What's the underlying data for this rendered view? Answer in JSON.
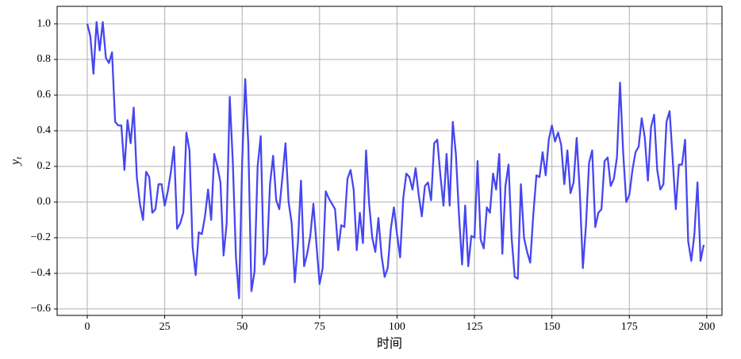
{
  "chart_data": {
    "type": "line",
    "xlabel": "时间",
    "ylabel": {
      "base": "y",
      "sub": "t"
    },
    "xlim": [
      -9.73,
      204.9
    ],
    "ylim": [
      -0.636,
      1.098
    ],
    "xticks": [
      0,
      25,
      50,
      75,
      100,
      125,
      150,
      175,
      200
    ],
    "yticks": [
      {
        "value": -0.6,
        "label": "−0.6"
      },
      {
        "value": -0.4,
        "label": "−0.4"
      },
      {
        "value": -0.2,
        "label": "−0.2"
      },
      {
        "value": 0,
        "label": "0.0"
      },
      {
        "value": 0.2,
        "label": "0.2"
      },
      {
        "value": 0.4,
        "label": "0.4"
      },
      {
        "value": 0.6,
        "label": "0.6"
      },
      {
        "value": 0.8,
        "label": "0.8"
      },
      {
        "value": 1.0,
        "label": "1.0"
      }
    ],
    "grid": true,
    "series": [
      {
        "color": "#4646f0",
        "x": [
          0,
          1,
          2,
          3,
          4,
          5,
          6,
          7,
          8,
          9,
          10,
          11,
          12,
          13,
          14,
          15,
          16,
          17,
          18,
          19,
          20,
          21,
          22,
          23,
          24,
          25,
          26,
          27,
          28,
          29,
          30,
          31,
          32,
          33,
          34,
          35,
          36,
          37,
          38,
          39,
          40,
          41,
          42,
          43,
          44,
          45,
          46,
          47,
          48,
          49,
          50,
          51,
          52,
          53,
          54,
          55,
          56,
          57,
          58,
          59,
          60,
          61,
          62,
          63,
          64,
          65,
          66,
          67,
          68,
          69,
          70,
          71,
          72,
          73,
          74,
          75,
          76,
          77,
          78,
          79,
          80,
          81,
          82,
          83,
          84,
          85,
          86,
          87,
          88,
          89,
          90,
          91,
          92,
          93,
          94,
          95,
          96,
          97,
          98,
          99,
          100,
          101,
          102,
          103,
          104,
          105,
          106,
          107,
          108,
          109,
          110,
          111,
          112,
          113,
          114,
          115,
          116,
          117,
          118,
          119,
          120,
          121,
          122,
          123,
          124,
          125,
          126,
          127,
          128,
          129,
          130,
          131,
          132,
          133,
          134,
          135,
          136,
          137,
          138,
          139,
          140,
          141,
          142,
          143,
          144,
          145,
          146,
          147,
          148,
          149,
          150,
          151,
          152,
          153,
          154,
          155,
          156,
          157,
          158,
          159,
          160,
          161,
          162,
          163,
          164,
          165,
          166,
          167,
          168,
          169,
          170,
          171,
          172,
          173,
          174,
          175,
          176,
          177,
          178,
          179,
          180,
          181,
          182,
          183,
          184,
          185,
          186,
          187,
          188,
          189,
          190,
          191,
          192,
          193,
          194,
          195,
          196,
          197,
          198,
          199
        ],
        "values": [
          1.0,
          0.93,
          0.72,
          1.01,
          0.85,
          1.01,
          0.81,
          0.78,
          0.84,
          0.45,
          0.43,
          0.43,
          0.18,
          0.46,
          0.33,
          0.53,
          0.14,
          -0.01,
          -0.1,
          0.17,
          0.14,
          -0.06,
          -0.04,
          0.1,
          0.1,
          -0.02,
          0.06,
          0.17,
          0.31,
          -0.15,
          -0.12,
          -0.06,
          0.39,
          0.29,
          -0.25,
          -0.41,
          -0.17,
          -0.18,
          -0.08,
          0.07,
          -0.1,
          0.27,
          0.2,
          0.11,
          -0.3,
          -0.12,
          0.59,
          0.22,
          -0.31,
          -0.54,
          0.22,
          0.69,
          0.32,
          -0.5,
          -0.39,
          0.2,
          0.37,
          -0.35,
          -0.29,
          0.1,
          0.26,
          0.01,
          -0.04,
          0.14,
          0.33,
          0.0,
          -0.12,
          -0.45,
          -0.23,
          0.12,
          -0.36,
          -0.29,
          -0.19,
          -0.01,
          -0.24,
          -0.46,
          -0.37,
          0.06,
          0.02,
          -0.01,
          -0.04,
          -0.27,
          -0.13,
          -0.14,
          0.13,
          0.18,
          0.07,
          -0.27,
          -0.06,
          -0.23,
          0.29,
          -0.01,
          -0.2,
          -0.28,
          -0.09,
          -0.3,
          -0.42,
          -0.37,
          -0.15,
          -0.03,
          -0.18,
          -0.31,
          0.02,
          0.16,
          0.14,
          0.07,
          0.19,
          0.04,
          -0.08,
          0.09,
          0.11,
          0.01,
          0.33,
          0.35,
          0.15,
          -0.02,
          0.27,
          -0.02,
          0.45,
          0.27,
          -0.07,
          -0.35,
          -0.02,
          -0.36,
          -0.19,
          -0.2,
          0.23,
          -0.21,
          -0.26,
          -0.03,
          -0.06,
          0.16,
          0.07,
          0.27,
          -0.29,
          0.09,
          0.21,
          -0.2,
          -0.42,
          -0.43,
          0.1,
          -0.2,
          -0.28,
          -0.34,
          -0.07,
          0.15,
          0.14,
          0.28,
          0.15,
          0.35,
          0.43,
          0.34,
          0.39,
          0.32,
          0.1,
          0.29,
          0.05,
          0.11,
          0.36,
          0.06,
          -0.37,
          -0.13,
          0.22,
          0.29,
          -0.14,
          -0.06,
          -0.04,
          0.23,
          0.25,
          0.09,
          0.13,
          0.25,
          0.67,
          0.28,
          0.0,
          0.04,
          0.18,
          0.28,
          0.31,
          0.47,
          0.36,
          0.12,
          0.42,
          0.49,
          0.18,
          0.07,
          0.1,
          0.45,
          0.51,
          0.24,
          -0.04,
          0.21,
          0.21,
          0.35,
          -0.22,
          -0.33,
          -0.18,
          0.11,
          -0.33,
          -0.24
        ]
      }
    ]
  }
}
